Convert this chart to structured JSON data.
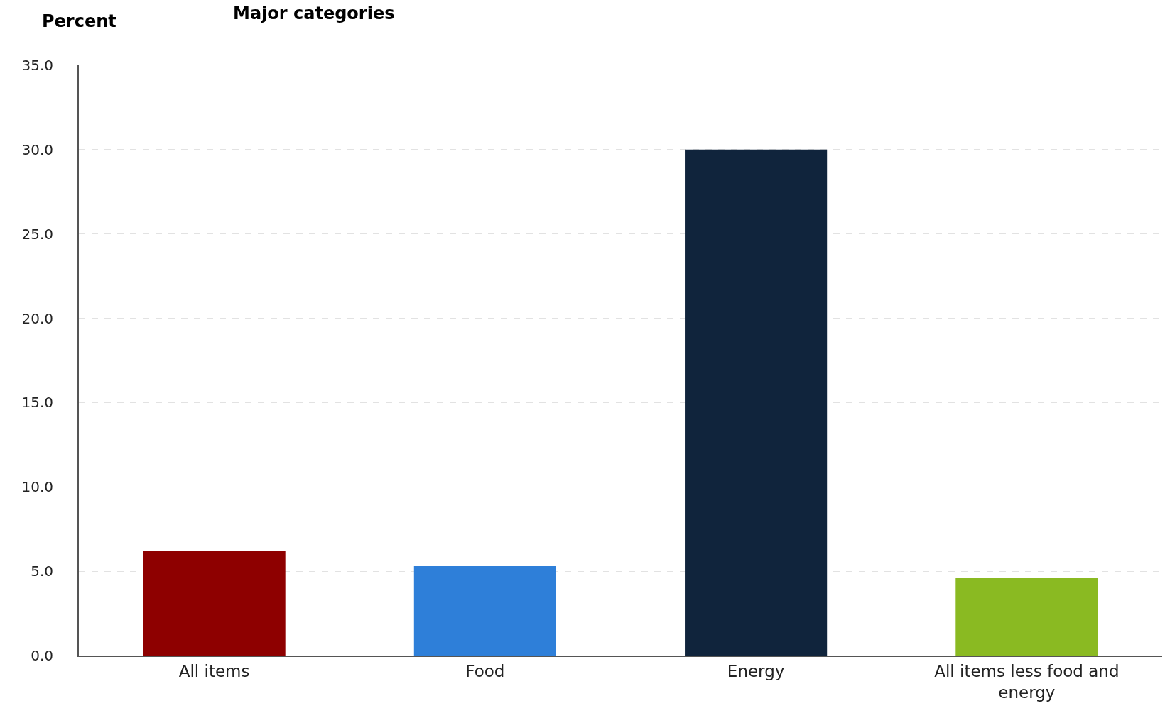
{
  "chart_data": {
    "type": "bar",
    "title": "Major categories",
    "ylabel": "Percent",
    "categories": [
      "All items",
      "Food",
      "Energy",
      "All items less food and energy"
    ],
    "values": [
      6.2,
      5.3,
      30.0,
      4.6
    ],
    "colors": [
      "#8e0000",
      "#2e7fd9",
      "#10243c",
      "#8aba22"
    ],
    "ylim": [
      0,
      35
    ],
    "yticks": [
      {
        "value": 0,
        "label": "0.0"
      },
      {
        "value": 5,
        "label": "5.0"
      },
      {
        "value": 10,
        "label": "10.0"
      },
      {
        "value": 15,
        "label": "15.0"
      },
      {
        "value": 20,
        "label": "20.0"
      },
      {
        "value": 25,
        "label": "25.0"
      },
      {
        "value": 30,
        "label": "30.0"
      },
      {
        "value": 35,
        "label": "35.0"
      }
    ],
    "grid": "y"
  }
}
